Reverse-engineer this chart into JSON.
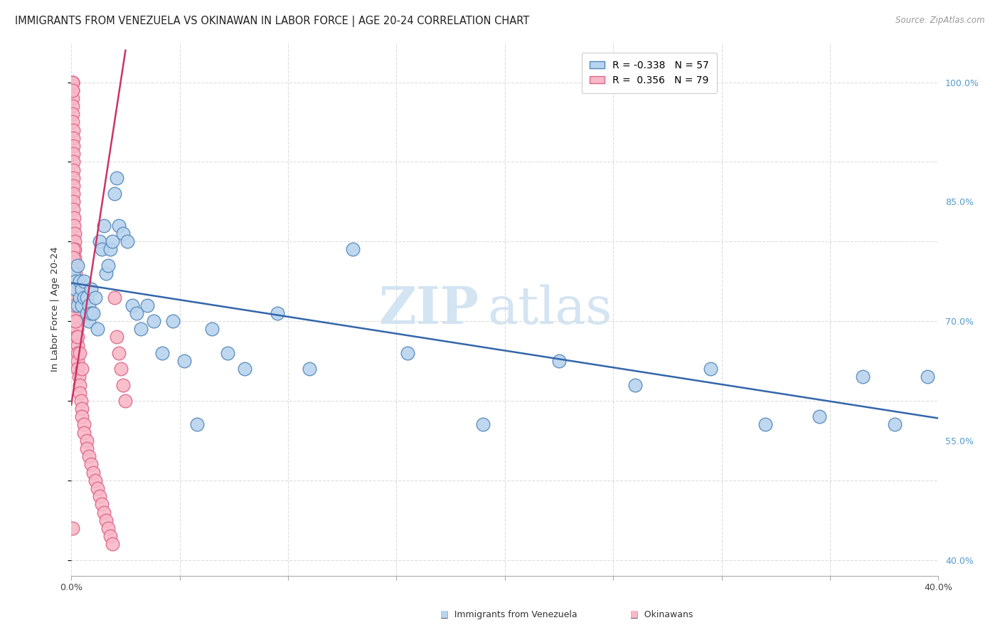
{
  "title": "IMMIGRANTS FROM VENEZUELA VS OKINAWAN IN LABOR FORCE | AGE 20-24 CORRELATION CHART",
  "source": "Source: ZipAtlas.com",
  "ylabel": "In Labor Force | Age 20-24",
  "y_tick_values": [
    1.0,
    0.85,
    0.7,
    0.55,
    0.4
  ],
  "y_tick_labels_right": [
    "100.0%",
    "85.0%",
    "70.0%",
    "55.0%",
    "40.0%"
  ],
  "watermark_zip": "ZIP",
  "watermark_atlas": "atlas",
  "x_min": 0.0,
  "x_max": 0.4,
  "y_min": 0.38,
  "y_max": 1.05,
  "bg_color": "#ffffff",
  "grid_color": "#dddddd",
  "blue_dot_color": "#b8d4ee",
  "blue_dot_edge": "#5588bb",
  "pink_dot_color": "#f8b8c8",
  "pink_dot_edge": "#dd6688",
  "blue_line_color": "#3366aa",
  "pink_line_color": "#cc3366",
  "blue_line_x": [
    0.0,
    0.4
  ],
  "blue_line_y": [
    0.748,
    0.578
  ],
  "pink_line_x": [
    0.0,
    0.025
  ],
  "pink_line_y": [
    0.595,
    1.04
  ],
  "blue_scatter_x": [
    0.001,
    0.002,
    0.002,
    0.003,
    0.003,
    0.004,
    0.004,
    0.005,
    0.005,
    0.006,
    0.006,
    0.007,
    0.007,
    0.008,
    0.008,
    0.009,
    0.009,
    0.01,
    0.011,
    0.012,
    0.013,
    0.014,
    0.015,
    0.016,
    0.017,
    0.018,
    0.019,
    0.02,
    0.021,
    0.022,
    0.024,
    0.026,
    0.028,
    0.03,
    0.032,
    0.035,
    0.038,
    0.042,
    0.047,
    0.052,
    0.058,
    0.065,
    0.072,
    0.08,
    0.095,
    0.11,
    0.13,
    0.155,
    0.19,
    0.225,
    0.26,
    0.295,
    0.32,
    0.345,
    0.365,
    0.38,
    0.395
  ],
  "blue_scatter_y": [
    0.76,
    0.75,
    0.74,
    0.77,
    0.72,
    0.75,
    0.73,
    0.74,
    0.72,
    0.73,
    0.75,
    0.71,
    0.73,
    0.7,
    0.72,
    0.71,
    0.74,
    0.71,
    0.73,
    0.69,
    0.8,
    0.79,
    0.82,
    0.76,
    0.77,
    0.79,
    0.8,
    0.86,
    0.88,
    0.82,
    0.81,
    0.8,
    0.72,
    0.71,
    0.69,
    0.72,
    0.7,
    0.66,
    0.7,
    0.65,
    0.57,
    0.69,
    0.66,
    0.64,
    0.71,
    0.64,
    0.79,
    0.66,
    0.57,
    0.65,
    0.62,
    0.64,
    0.57,
    0.58,
    0.63,
    0.57,
    0.63
  ],
  "pink_scatter_x": [
    0.0005,
    0.0005,
    0.0005,
    0.0005,
    0.0005,
    0.0005,
    0.0008,
    0.0008,
    0.0008,
    0.001,
    0.001,
    0.001,
    0.001,
    0.001,
    0.001,
    0.001,
    0.001,
    0.0012,
    0.0012,
    0.0015,
    0.0015,
    0.0015,
    0.0015,
    0.0018,
    0.0018,
    0.002,
    0.002,
    0.002,
    0.002,
    0.0022,
    0.0022,
    0.0025,
    0.0025,
    0.003,
    0.003,
    0.003,
    0.003,
    0.0035,
    0.004,
    0.004,
    0.0045,
    0.005,
    0.005,
    0.006,
    0.006,
    0.007,
    0.007,
    0.008,
    0.009,
    0.01,
    0.011,
    0.012,
    0.013,
    0.014,
    0.015,
    0.016,
    0.017,
    0.018,
    0.019,
    0.02,
    0.021,
    0.022,
    0.023,
    0.024,
    0.025,
    0.003,
    0.0008,
    0.001,
    0.0015,
    0.002,
    0.003,
    0.004,
    0.005,
    0.0005,
    0.0005,
    0.0005,
    0.002,
    0.001,
    0.0005
  ],
  "pink_scatter_y": [
    1.0,
    0.99,
    0.98,
    0.97,
    0.96,
    0.95,
    0.94,
    0.93,
    0.92,
    0.91,
    0.9,
    0.89,
    0.88,
    0.87,
    0.86,
    0.85,
    0.84,
    0.83,
    0.82,
    0.81,
    0.8,
    0.79,
    0.78,
    0.77,
    0.76,
    0.75,
    0.74,
    0.73,
    0.72,
    0.71,
    0.7,
    0.69,
    0.68,
    0.67,
    0.66,
    0.65,
    0.64,
    0.63,
    0.62,
    0.61,
    0.6,
    0.59,
    0.58,
    0.57,
    0.56,
    0.55,
    0.54,
    0.53,
    0.52,
    0.51,
    0.5,
    0.49,
    0.48,
    0.47,
    0.46,
    0.45,
    0.44,
    0.43,
    0.42,
    0.73,
    0.68,
    0.66,
    0.64,
    0.62,
    0.6,
    0.75,
    0.79,
    0.76,
    0.72,
    0.7,
    0.68,
    0.66,
    0.64,
    1.0,
    1.0,
    0.99,
    0.74,
    0.78,
    0.44
  ]
}
